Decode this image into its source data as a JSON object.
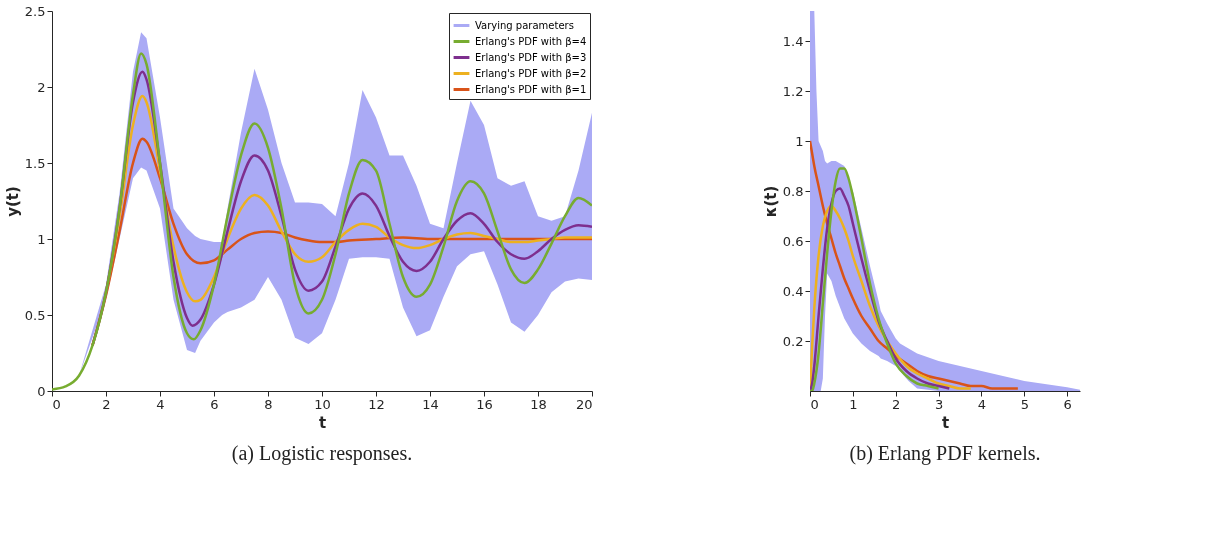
{
  "chart_data": [
    {
      "type": "line",
      "xlabel": "t",
      "ylabel": "y(t)",
      "xlim": [
        0,
        20
      ],
      "ylim": [
        0,
        2.5
      ],
      "xticks": [
        0,
        2,
        4,
        6,
        8,
        10,
        12,
        14,
        16,
        18,
        20
      ],
      "yticks": [
        0,
        0.5,
        1,
        1.5,
        2,
        2.5
      ],
      "grid": false,
      "legend": "top right",
      "annotations": [
        "(a) Logistic responses."
      ],
      "series": [
        {
          "type": "area",
          "name": "Varying parameters",
          "color": "#aaaaf5",
          "x": [
            0,
            1,
            2,
            2.5,
            3,
            3.3,
            3.5,
            4,
            4.5,
            5,
            5.3,
            5.5,
            6,
            6.3,
            6.5,
            7,
            7.5,
            8,
            8.5,
            9,
            9.5,
            10,
            10.5,
            11,
            11.5,
            12,
            12.5,
            13,
            13.5,
            14,
            14.5,
            15,
            15.5,
            16,
            16.5,
            17,
            17.5,
            18,
            18.5,
            19,
            19.5,
            20
          ],
          "values": [
            null,
            null,
            null,
            null,
            null,
            null,
            null,
            null,
            null,
            null,
            null,
            null,
            null,
            null,
            null,
            null,
            null,
            null,
            null,
            null,
            null,
            null,
            null,
            null,
            null,
            null,
            null,
            null,
            null,
            null,
            null,
            null,
            null,
            null,
            null,
            null,
            null,
            null,
            null,
            null,
            null,
            null
          ],
          "lower": [
            0.01,
            0.1,
            0.6,
            1.0,
            1.4,
            1.47,
            1.45,
            1.2,
            0.6,
            0.27,
            0.25,
            0.33,
            0.45,
            0.5,
            0.52,
            0.55,
            0.6,
            0.75,
            0.6,
            0.35,
            0.31,
            0.38,
            0.6,
            0.87,
            0.88,
            0.88,
            0.87,
            0.55,
            0.36,
            0.4,
            0.62,
            0.82,
            0.9,
            0.92,
            0.7,
            0.45,
            0.39,
            0.5,
            0.65,
            0.72,
            0.74,
            0.73
          ],
          "upper": [
            0.01,
            0.1,
            0.7,
            1.3,
            2.1,
            2.36,
            2.32,
            1.8,
            1.2,
            1.07,
            1.02,
            1.0,
            0.98,
            0.98,
            1.2,
            1.7,
            2.12,
            1.85,
            1.5,
            1.24,
            1.24,
            1.23,
            1.15,
            1.5,
            1.98,
            1.8,
            1.55,
            1.55,
            1.35,
            1.1,
            1.07,
            1.5,
            1.91,
            1.75,
            1.4,
            1.35,
            1.38,
            1.15,
            1.12,
            1.15,
            1.45,
            1.83
          ]
        },
        {
          "name": "Erlang's PDF with β=4",
          "color": "#77ac30",
          "x": [
            0,
            0.5,
            1,
            1.5,
            2,
            2.5,
            3,
            3.3,
            3.5,
            4,
            4.5,
            5,
            5.25,
            5.5,
            6,
            6.5,
            7,
            7.5,
            8,
            8.5,
            9,
            9.5,
            10,
            10.5,
            11,
            11.5,
            12,
            12.5,
            13,
            13.5,
            14,
            14.5,
            15,
            15.5,
            16,
            16.5,
            17,
            17.5,
            18,
            18.5,
            19,
            19.5,
            20
          ],
          "values": [
            0.01,
            0.03,
            0.1,
            0.3,
            0.65,
            1.2,
            1.95,
            2.22,
            2.15,
            1.5,
            0.75,
            0.38,
            0.34,
            0.4,
            0.7,
            1.15,
            1.55,
            1.76,
            1.6,
            1.2,
            0.7,
            0.51,
            0.6,
            0.9,
            1.3,
            1.52,
            1.45,
            1.1,
            0.75,
            0.62,
            0.7,
            0.95,
            1.25,
            1.38,
            1.3,
            1.05,
            0.8,
            0.71,
            0.8,
            0.97,
            1.15,
            1.27,
            1.22
          ]
        },
        {
          "name": "Erlang's PDF with β=3",
          "color": "#7e2f8e",
          "x": [
            1.5,
            2,
            2.5,
            3,
            3.35,
            3.5,
            4,
            4.5,
            5,
            5.2,
            5.5,
            6,
            6.5,
            7,
            7.5,
            8,
            8.5,
            9,
            9.5,
            10,
            10.5,
            11,
            11.5,
            12,
            12.5,
            13,
            13.5,
            14,
            14.5,
            15,
            15.5,
            16,
            16.5,
            17,
            17.5,
            18,
            18.5,
            19,
            19.5,
            20
          ],
          "values": [
            0.3,
            0.65,
            1.2,
            1.9,
            2.1,
            2.05,
            1.5,
            0.85,
            0.48,
            0.43,
            0.47,
            0.7,
            1.05,
            1.38,
            1.55,
            1.45,
            1.15,
            0.8,
            0.66,
            0.72,
            0.95,
            1.2,
            1.3,
            1.22,
            1.02,
            0.85,
            0.79,
            0.85,
            1.0,
            1.12,
            1.17,
            1.1,
            0.98,
            0.9,
            0.87,
            0.92,
            1.0,
            1.06,
            1.09,
            1.08
          ]
        },
        {
          "name": "Erlang's PDF with β=2",
          "color": "#edb120",
          "x": [
            1.5,
            2,
            2.5,
            3,
            3.35,
            3.5,
            4,
            4.5,
            5,
            5.3,
            5.5,
            6,
            6.5,
            7,
            7.5,
            8,
            8.5,
            9,
            9.5,
            10,
            10.5,
            11,
            11.5,
            12,
            12.5,
            13,
            13.5,
            14,
            14.5,
            15,
            15.5,
            16,
            16.5,
            17,
            17.5,
            18,
            18.5,
            19,
            19.5,
            20
          ],
          "values": [
            0.3,
            0.65,
            1.15,
            1.75,
            1.94,
            1.9,
            1.45,
            0.95,
            0.65,
            0.59,
            0.6,
            0.75,
            1.0,
            1.2,
            1.29,
            1.22,
            1.05,
            0.9,
            0.85,
            0.88,
            0.98,
            1.06,
            1.1,
            1.08,
            1.01,
            0.96,
            0.94,
            0.96,
            1.0,
            1.03,
            1.04,
            1.02,
            1.0,
            0.98,
            0.98,
            0.99,
            1.0,
            1.01,
            1.01,
            1.01
          ]
        },
        {
          "name": "Erlang's PDF with β=1",
          "color": "#d95319",
          "x": [
            1.5,
            2,
            2.5,
            3,
            3.35,
            3.5,
            4,
            4.5,
            5,
            5.5,
            6,
            6.5,
            7,
            7.5,
            8,
            8.5,
            9,
            9.5,
            10,
            10.5,
            11,
            12,
            13,
            14,
            15,
            16,
            17,
            18,
            19,
            20
          ],
          "values": [
            0.3,
            0.63,
            1.05,
            1.5,
            1.66,
            1.64,
            1.4,
            1.1,
            0.9,
            0.84,
            0.86,
            0.93,
            1.0,
            1.04,
            1.05,
            1.04,
            1.01,
            0.99,
            0.98,
            0.98,
            0.99,
            1.0,
            1.01,
            1.0,
            1.0,
            1.0,
            1.0,
            1.0,
            1.0,
            1.0
          ]
        }
      ]
    },
    {
      "type": "line",
      "xlabel": "t",
      "ylabel": "κ(t)",
      "xlim": [
        0,
        6.3
      ],
      "ylim": [
        0,
        1.52
      ],
      "xticks": [
        0,
        1,
        2,
        3,
        4,
        5,
        6
      ],
      "yticks": [
        0.2,
        0.4,
        0.6,
        0.8,
        1,
        1.2,
        1.4
      ],
      "grid": false,
      "annotations": [
        "(b) Erlang PDF kernels."
      ],
      "series": [
        {
          "type": "area",
          "color": "#aaaaf5",
          "x": [
            0,
            0.1,
            0.15,
            0.2,
            0.25,
            0.3,
            0.35,
            0.4,
            0.5,
            0.6,
            0.8,
            1.0,
            1.2,
            1.4,
            1.6,
            1.65,
            1.8,
            2.0,
            2.1,
            2.3,
            2.5,
            3,
            4,
            5,
            6,
            6.3
          ],
          "values": [
            null,
            null,
            null,
            null,
            null,
            null,
            null,
            null,
            null,
            null,
            null,
            null,
            null,
            null,
            null,
            null,
            null,
            null,
            null,
            null,
            null,
            null,
            null,
            null,
            null,
            null
          ],
          "lower": [
            0,
            0,
            0,
            0,
            0,
            0.05,
            0.3,
            0.47,
            0.44,
            0.38,
            0.29,
            0.23,
            0.19,
            0.16,
            0.14,
            0.13,
            0.12,
            0.1,
            0.08,
            0.04,
            0.01,
            0,
            0,
            0,
            0,
            0
          ],
          "upper": [
            1.52,
            1.52,
            1.2,
            1.0,
            0.98,
            0.96,
            0.92,
            0.91,
            0.92,
            0.92,
            0.9,
            0.8,
            0.65,
            0.5,
            0.36,
            0.32,
            0.27,
            0.21,
            0.19,
            0.17,
            0.15,
            0.12,
            0.08,
            0.04,
            0.015,
            0.005
          ]
        },
        {
          "color": "#77ac30",
          "x": [
            0,
            0.05,
            0.1,
            0.2,
            0.3,
            0.4,
            0.5,
            0.6,
            0.7,
            0.8,
            0.9,
            1.0,
            1.2,
            1.4,
            1.6,
            1.8,
            2.0,
            2.25,
            2.5,
            2.75,
            3.0
          ],
          "values": [
            0,
            0,
            0.03,
            0.15,
            0.35,
            0.55,
            0.72,
            0.84,
            0.89,
            0.89,
            0.85,
            0.78,
            0.61,
            0.43,
            0.29,
            0.19,
            0.11,
            0.06,
            0.03,
            0.02,
            0.01
          ]
        },
        {
          "color": "#7e2f8e",
          "x": [
            0,
            0.05,
            0.1,
            0.2,
            0.3,
            0.4,
            0.5,
            0.6,
            0.7,
            0.8,
            0.9,
            1.0,
            1.2,
            1.4,
            1.6,
            1.8,
            2.0,
            2.25,
            2.5,
            2.75,
            3.0,
            3.25
          ],
          "values": [
            0,
            0.03,
            0.1,
            0.3,
            0.49,
            0.65,
            0.75,
            0.8,
            0.81,
            0.78,
            0.74,
            0.67,
            0.53,
            0.4,
            0.28,
            0.2,
            0.13,
            0.08,
            0.05,
            0.03,
            0.02,
            0.01
          ]
        },
        {
          "color": "#edb120",
          "x": [
            0,
            0.05,
            0.1,
            0.2,
            0.3,
            0.4,
            0.5,
            0.6,
            0.7,
            0.8,
            0.9,
            1.0,
            1.2,
            1.4,
            1.6,
            1.8,
            2.0,
            2.25,
            2.5,
            2.75,
            3.0,
            3.25,
            3.5,
            3.75
          ],
          "values": [
            0,
            0.18,
            0.33,
            0.54,
            0.66,
            0.72,
            0.74,
            0.72,
            0.69,
            0.65,
            0.6,
            0.54,
            0.44,
            0.34,
            0.26,
            0.2,
            0.15,
            0.1,
            0.07,
            0.05,
            0.03,
            0.02,
            0.01,
            0.01
          ]
        },
        {
          "color": "#d95319",
          "x": [
            0,
            0.05,
            0.1,
            0.2,
            0.3,
            0.4,
            0.5,
            0.6,
            0.7,
            0.8,
            0.9,
            1.0,
            1.2,
            1.4,
            1.6,
            1.8,
            2.0,
            2.25,
            2.5,
            2.75,
            3.0,
            3.25,
            3.5,
            3.75,
            4.0,
            4.25,
            4.5,
            4.85
          ],
          "values": [
            1,
            0.95,
            0.9,
            0.82,
            0.74,
            0.67,
            0.61,
            0.55,
            0.5,
            0.45,
            0.41,
            0.37,
            0.3,
            0.25,
            0.2,
            0.17,
            0.14,
            0.11,
            0.08,
            0.06,
            0.05,
            0.04,
            0.03,
            0.02,
            0.02,
            0.01,
            0.01,
            0.01
          ]
        }
      ]
    }
  ]
}
